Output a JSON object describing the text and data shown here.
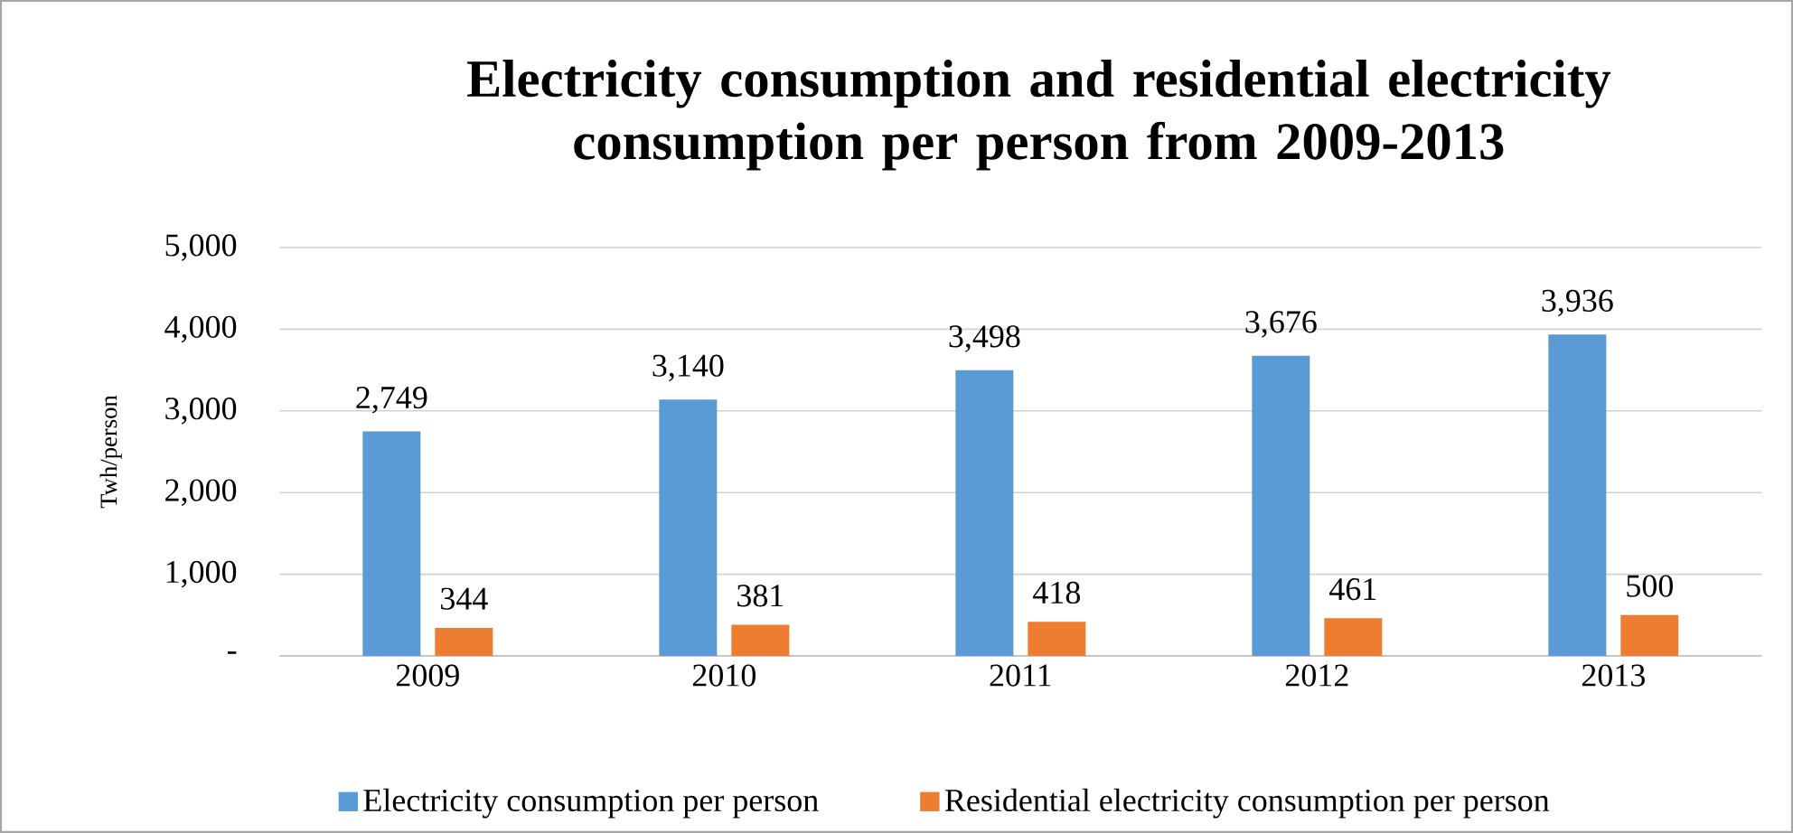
{
  "chart_data": {
    "type": "bar",
    "title": "Electricity consumption and residential electricity consumption per person from 2009-2013",
    "ylabel": "Twh/person",
    "categories": [
      "2009",
      "2010",
      "2011",
      "2012",
      "2013"
    ],
    "series": [
      {
        "name": "Electricity consumption per person",
        "color": "#5b9bd5",
        "values": [
          2749,
          3140,
          3498,
          3676,
          3936
        ],
        "value_labels": [
          "2,749",
          "3,140",
          "3,498",
          "3,676",
          "3,936"
        ]
      },
      {
        "name": "Residential electricity consumption per person",
        "color": "#ed7d31",
        "values": [
          344,
          381,
          418,
          461,
          500
        ],
        "value_labels": [
          "344",
          "381",
          "418",
          "461",
          "500"
        ]
      }
    ],
    "ylim": [
      0,
      5000
    ],
    "yticks": [
      {
        "value": 0,
        "label": "-"
      },
      {
        "value": 1000,
        "label": "1,000"
      },
      {
        "value": 2000,
        "label": "2,000"
      },
      {
        "value": 3000,
        "label": "3,000"
      },
      {
        "value": 4000,
        "label": "4,000"
      },
      {
        "value": 5000,
        "label": "5,000"
      }
    ],
    "grid": "y",
    "legend": "bottom"
  }
}
